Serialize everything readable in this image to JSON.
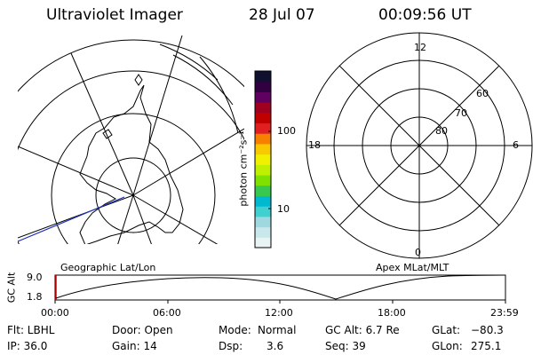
{
  "header": {
    "instrument": "Ultraviolet Imager",
    "date": "28 Jul 07",
    "time": "00:09:56 UT"
  },
  "left_map": {
    "caption": "Geographic Lat/Lon"
  },
  "colorbar": {
    "label": "photon cm⁻²s⁻¹",
    "tick_100": "100",
    "tick_10": "10",
    "colors": [
      "#e8f4f4",
      "#c8e8ec",
      "#a0d8e0",
      "#40d0d0",
      "#00b8d0",
      "#38c850",
      "#80e000",
      "#c0f000",
      "#f0f000",
      "#f8c800",
      "#f88000",
      "#e02020",
      "#c00000",
      "#a00020",
      "#600060",
      "#300040",
      "#101030"
    ]
  },
  "right_map": {
    "caption": "Apex MLat/MLT",
    "mlt_labels": {
      "top": "12",
      "left": "18",
      "right": "6",
      "bottom": "0"
    },
    "lat_labels": [
      "60",
      "70",
      "80"
    ]
  },
  "timeline": {
    "ylabel": "GC Alt",
    "y_ticks": [
      "9.0",
      "1.8"
    ],
    "x_ticks": [
      "00:00",
      "06:00",
      "12:00",
      "18:00",
      "23:59"
    ]
  },
  "info": {
    "row1": {
      "filter": "Flt: LBHL",
      "door": "Door: Open",
      "mode_key": "Mode:",
      "mode_val": "Normal",
      "gc_alt": "GC Alt: 6.7 Re",
      "glat_key": "GLat:",
      "glat_val": "−80.3"
    },
    "row2": {
      "ip": "IP: 36.0",
      "gain": "Gain: 14",
      "dsp_key": "Dsp:",
      "dsp_val": "3.6",
      "seq": "Seq: 39",
      "glon_key": "GLon:",
      "glon_val": "275.1"
    }
  }
}
